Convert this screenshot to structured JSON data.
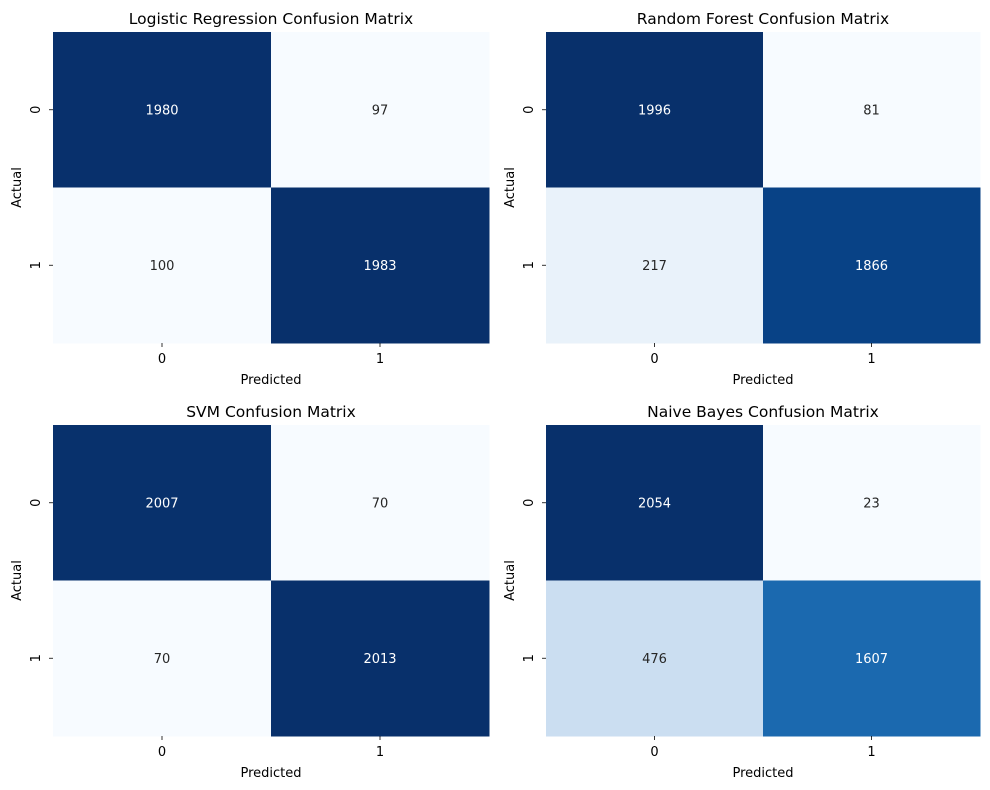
{
  "chart_data": [
    {
      "type": "heatmap",
      "title": "Logistic Regression Confusion Matrix",
      "xlabel": "Predicted",
      "ylabel": "Actual",
      "x_categories": [
        "0",
        "1"
      ],
      "y_categories": [
        "0",
        "1"
      ],
      "values": [
        [
          1980,
          97
        ],
        [
          100,
          1983
        ]
      ],
      "colormap": "Blues",
      "colorbar": false
    },
    {
      "type": "heatmap",
      "title": "Random Forest Confusion Matrix",
      "xlabel": "Predicted",
      "ylabel": "Actual",
      "x_categories": [
        "0",
        "1"
      ],
      "y_categories": [
        "0",
        "1"
      ],
      "values": [
        [
          1996,
          81
        ],
        [
          217,
          1866
        ]
      ],
      "colormap": "Blues",
      "colorbar": false
    },
    {
      "type": "heatmap",
      "title": "SVM Confusion Matrix",
      "xlabel": "Predicted",
      "ylabel": "Actual",
      "x_categories": [
        "0",
        "1"
      ],
      "y_categories": [
        "0",
        "1"
      ],
      "values": [
        [
          2007,
          70
        ],
        [
          70,
          2013
        ]
      ],
      "colormap": "Blues",
      "colorbar": false
    },
    {
      "type": "heatmap",
      "title": "Naive Bayes Confusion Matrix",
      "xlabel": "Predicted",
      "ylabel": "Actual",
      "x_categories": [
        "0",
        "1"
      ],
      "y_categories": [
        "0",
        "1"
      ],
      "values": [
        [
          2054,
          23
        ],
        [
          476,
          1607
        ]
      ],
      "colormap": "Blues",
      "colorbar": false
    }
  ]
}
